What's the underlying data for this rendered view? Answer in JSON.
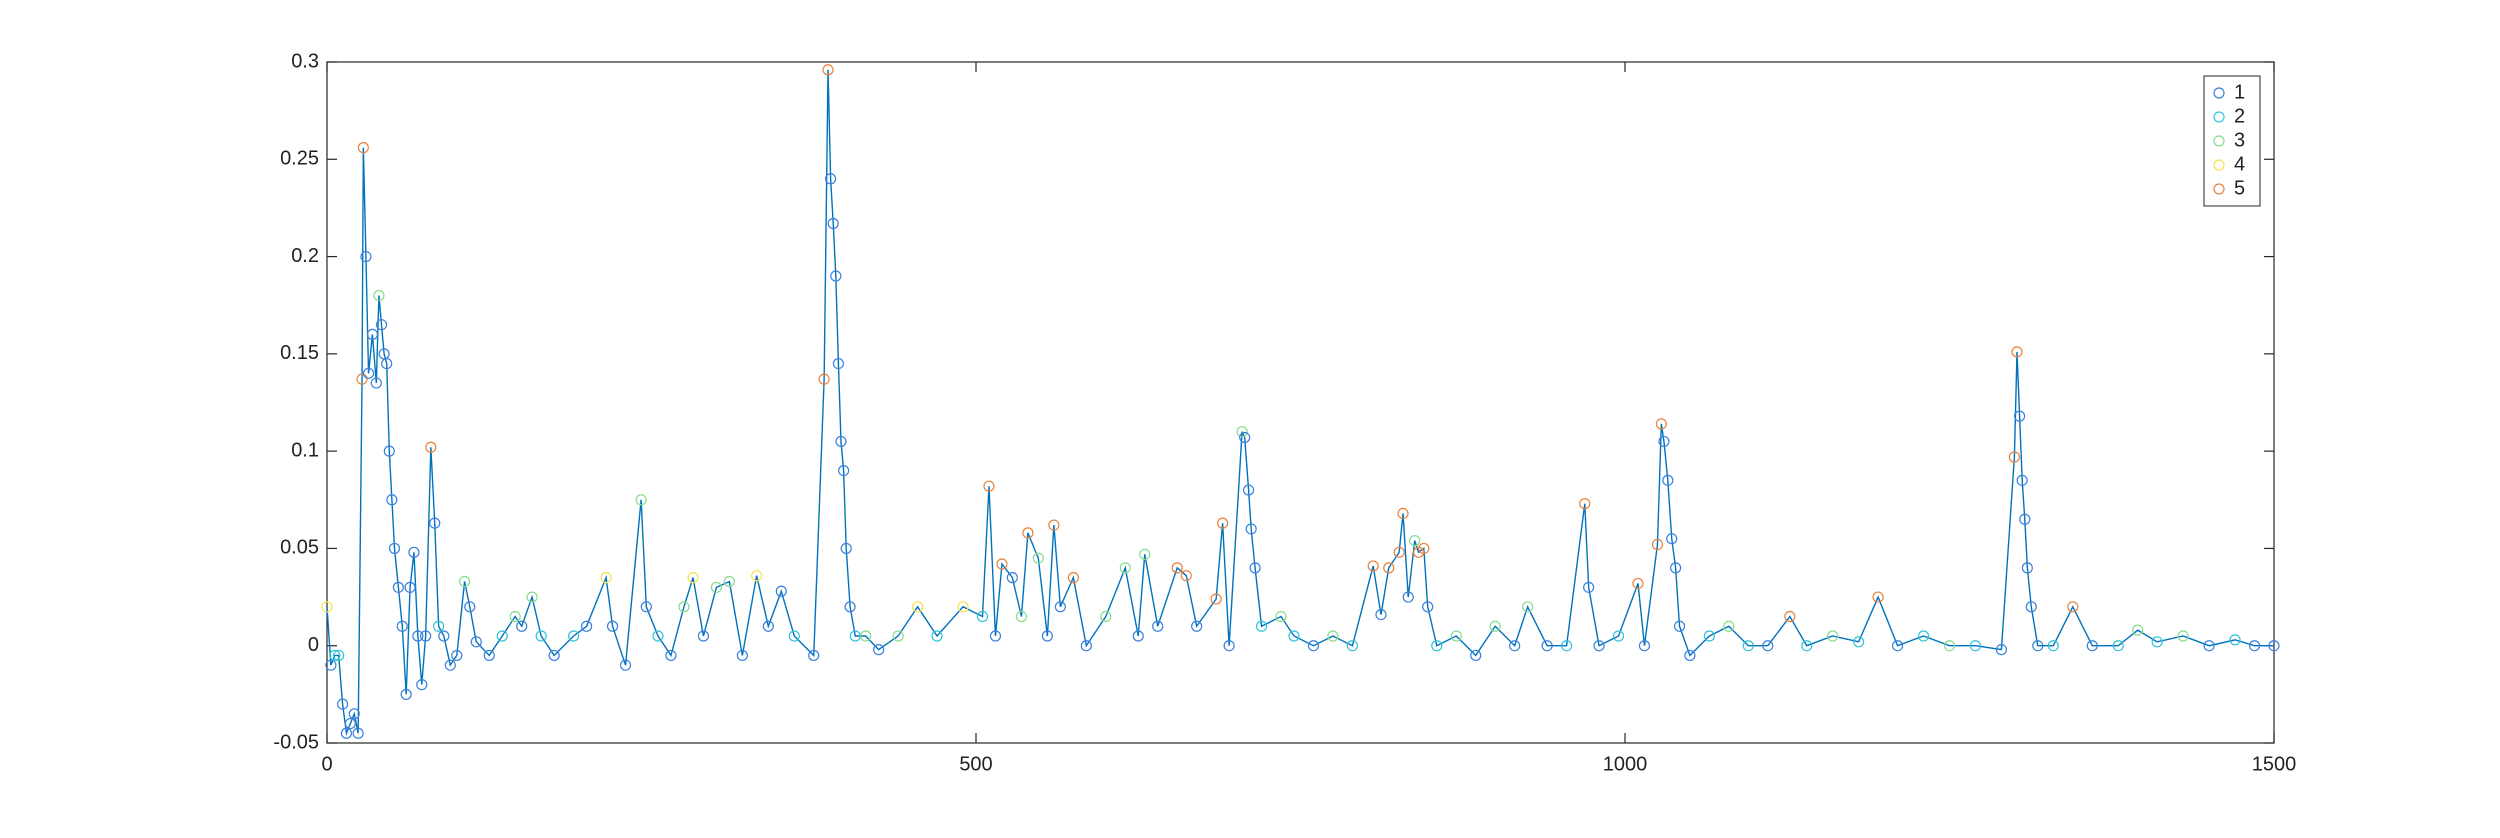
{
  "chart_data": {
    "type": "line",
    "xlim": [
      0,
      1500
    ],
    "xticks": [
      0,
      500,
      1000,
      1500
    ],
    "ylim": [
      -0.05,
      0.3
    ],
    "yticks": [
      -0.05,
      0,
      0.05,
      0.1,
      0.15,
      0.2,
      0.25,
      0.3
    ],
    "line_color": "#0072bd",
    "legend": "northeast",
    "series": [
      {
        "name": "1",
        "color": "#3a7fdc"
      },
      {
        "name": "2",
        "color": "#2ec4d8"
      },
      {
        "name": "3",
        "color": "#86dc8c"
      },
      {
        "name": "4",
        "color": "#f3e24a"
      },
      {
        "name": "5",
        "color": "#e8803a"
      }
    ],
    "x": [
      0,
      3,
      6,
      9,
      12,
      15,
      18,
      21,
      24,
      27,
      28,
      30,
      32,
      35,
      38,
      40,
      42,
      44,
      46,
      48,
      50,
      52,
      55,
      58,
      61,
      64,
      67,
      70,
      73,
      76,
      80,
      83,
      86,
      90,
      95,
      100,
      106,
      110,
      115,
      125,
      135,
      145,
      150,
      158,
      165,
      175,
      190,
      200,
      215,
      220,
      230,
      242,
      246,
      255,
      265,
      275,
      282,
      290,
      300,
      310,
      320,
      331,
      340,
      350,
      360,
      375,
      383,
      386,
      388,
      390,
      392,
      394,
      396,
      398,
      400,
      403,
      407,
      415,
      425,
      440,
      455,
      470,
      490,
      505,
      510,
      515,
      520,
      528,
      535,
      540,
      548,
      555,
      560,
      565,
      575,
      585,
      600,
      615,
      625,
      630,
      640,
      655,
      662,
      670,
      685,
      690,
      695,
      705,
      707,
      710,
      712,
      715,
      720,
      735,
      745,
      760,
      775,
      790,
      806,
      812,
      818,
      826,
      829,
      833,
      838,
      841,
      845,
      848,
      855,
      870,
      885,
      900,
      915,
      925,
      940,
      955,
      969,
      972,
      980,
      995,
      1010,
      1015,
      1025,
      1028,
      1030,
      1033,
      1036,
      1039,
      1042,
      1050,
      1065,
      1080,
      1095,
      1110,
      1127,
      1140,
      1160,
      1180,
      1195,
      1210,
      1230,
      1250,
      1270,
      1290,
      1300,
      1302,
      1304,
      1306,
      1308,
      1310,
      1313,
      1318,
      1330,
      1345,
      1360,
      1380,
      1395,
      1410,
      1430,
      1450,
      1470,
      1485,
      1500
    ],
    "values": [
      0.02,
      -0.01,
      -0.005,
      -0.005,
      -0.03,
      -0.045,
      -0.04,
      -0.035,
      -0.045,
      0.137,
      0.256,
      0.2,
      0.14,
      0.16,
      0.135,
      0.18,
      0.165,
      0.15,
      0.145,
      0.1,
      0.075,
      0.05,
      0.03,
      0.01,
      -0.025,
      0.03,
      0.048,
      0.005,
      -0.02,
      0.005,
      0.102,
      0.063,
      0.01,
      0.005,
      -0.01,
      -0.005,
      0.033,
      0.02,
      0.002,
      -0.005,
      0.005,
      0.015,
      0.01,
      0.025,
      0.005,
      -0.005,
      0.005,
      0.01,
      0.035,
      0.01,
      -0.01,
      0.075,
      0.02,
      0.005,
      -0.005,
      0.02,
      0.035,
      0.005,
      0.03,
      0.033,
      -0.005,
      0.036,
      0.01,
      0.028,
      0.005,
      -0.005,
      0.137,
      0.296,
      0.24,
      0.217,
      0.19,
      0.145,
      0.105,
      0.09,
      0.05,
      0.02,
      0.005,
      0.005,
      -0.002,
      0.005,
      0.02,
      0.005,
      0.02,
      0.015,
      0.082,
      0.005,
      0.042,
      0.035,
      0.015,
      0.058,
      0.045,
      0.005,
      0.062,
      0.02,
      0.035,
      0,
      0.015,
      0.04,
      0.005,
      0.047,
      0.01,
      0.04,
      0.036,
      0.01,
      0.024,
      0.063,
      0,
      0.11,
      0.107,
      0.08,
      0.06,
      0.04,
      0.01,
      0.015,
      0.005,
      0,
      0.005,
      0,
      0.041,
      0.016,
      0.04,
      0.048,
      0.068,
      0.025,
      0.054,
      0.048,
      0.05,
      0.02,
      0,
      0.005,
      -0.005,
      0.01,
      0,
      0.02,
      0,
      0,
      0.073,
      0.03,
      0,
      0.005,
      0.032,
      0,
      0.052,
      0.114,
      0.105,
      0.085,
      0.055,
      0.04,
      0.01,
      -0.005,
      0.005,
      0.01,
      0,
      0,
      0.015,
      0,
      0.005,
      0.002,
      0.025,
      0,
      0.005,
      0,
      0,
      -0.002,
      0.097,
      0.151,
      0.118,
      0.085,
      0.065,
      0.04,
      0.02,
      0,
      0,
      0.02,
      0,
      0,
      0.008,
      0.002,
      0.005,
      0,
      0.003,
      0,
      0
    ],
    "groups": [
      "4",
      "1",
      "2",
      "2",
      "1",
      "1",
      "1",
      "1",
      "1",
      "5",
      "5",
      "1",
      "1",
      "1",
      "1",
      "3",
      "1",
      "1",
      "1",
      "1",
      "1",
      "1",
      "1",
      "1",
      "1",
      "1",
      "1",
      "1",
      "1",
      "1",
      "5",
      "1",
      "2",
      "1",
      "1",
      "1",
      "3",
      "1",
      "1",
      "1",
      "2",
      "3",
      "1",
      "3",
      "2",
      "1",
      "2",
      "1",
      "4",
      "1",
      "1",
      "3",
      "1",
      "2",
      "1",
      "3",
      "4",
      "1",
      "3",
      "3",
      "1",
      "4",
      "1",
      "1",
      "2",
      "1",
      "5",
      "5",
      "1",
      "1",
      "1",
      "1",
      "1",
      "1",
      "1",
      "1",
      "2",
      "3",
      "1",
      "3",
      "4",
      "2",
      "4",
      "2",
      "5",
      "1",
      "5",
      "1",
      "3",
      "5",
      "3",
      "1",
      "5",
      "1",
      "5",
      "1",
      "3",
      "3",
      "1",
      "3",
      "1",
      "5",
      "5",
      "1",
      "5",
      "5",
      "1",
      "3",
      "1",
      "1",
      "1",
      "1",
      "2",
      "3",
      "2",
      "1",
      "3",
      "2",
      "5",
      "1",
      "5",
      "5",
      "5",
      "1",
      "3",
      "5",
      "5",
      "1",
      "2",
      "3",
      "1",
      "3",
      "1",
      "3",
      "1",
      "2",
      "5",
      "1",
      "1",
      "2",
      "5",
      "1",
      "5",
      "5",
      "1",
      "1",
      "1",
      "1",
      "1",
      "1",
      "2",
      "3",
      "2",
      "1",
      "5",
      "2",
      "3",
      "2",
      "5",
      "1",
      "2",
      "3",
      "2",
      "1",
      "5",
      "5",
      "1",
      "1",
      "1",
      "1",
      "1",
      "1",
      "2",
      "5",
      "1",
      "2",
      "3",
      "2",
      "3",
      "1",
      "2",
      "1",
      "1"
    ]
  }
}
